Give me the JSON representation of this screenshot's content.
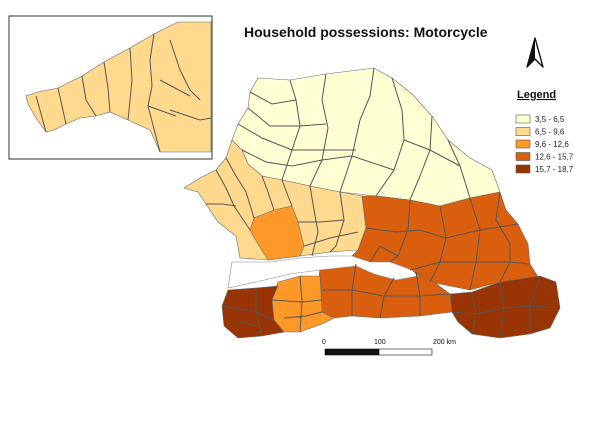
{
  "title": "Household possessions: Motorcycle",
  "legend": {
    "title": "Legend",
    "classes": [
      {
        "label": "3,5 - 6,5",
        "color": "#ffffd4"
      },
      {
        "label": "6,5 - 9,6",
        "color": "#fed98e"
      },
      {
        "label": "9,6 - 12,6",
        "color": "#fe9929"
      },
      {
        "label": "12,6 - 15,7",
        "color": "#d95f0e"
      },
      {
        "label": "15,7 - 18,7",
        "color": "#993404"
      }
    ]
  },
  "scale_bar": {
    "labels": [
      "0",
      "100",
      "200 km"
    ]
  },
  "north_arrow": {
    "icon": "north-arrow-icon"
  },
  "colors": {
    "border": "#6a6a6a",
    "background": "#ffffff"
  }
}
